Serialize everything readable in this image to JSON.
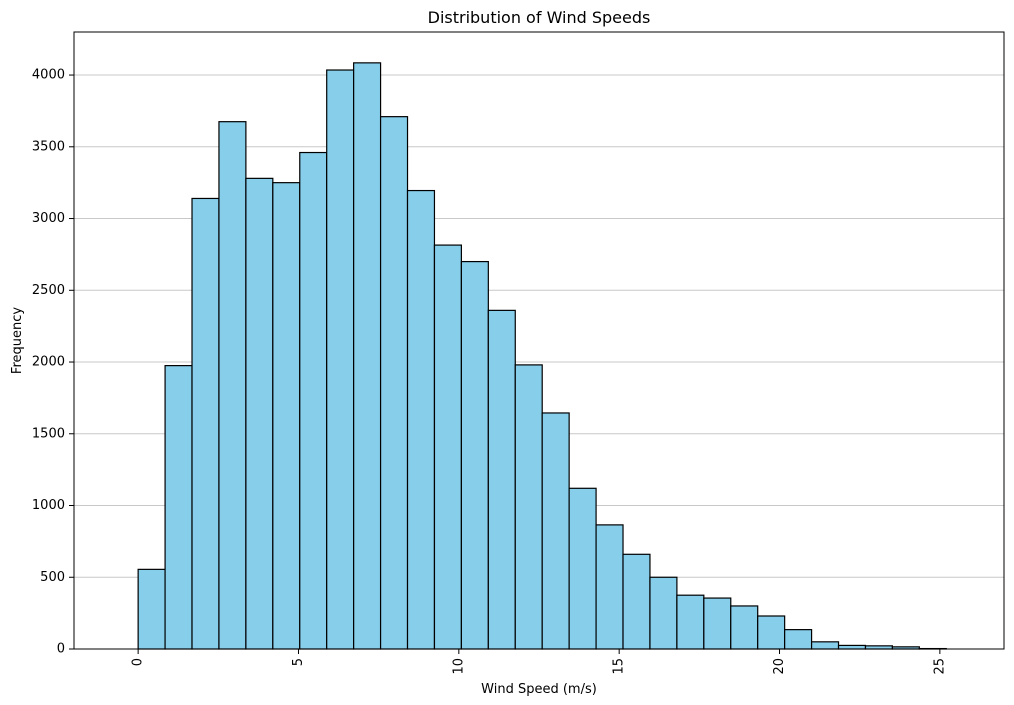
{
  "chart_data": {
    "type": "bar",
    "title": "Distribution of Wind Speeds",
    "xlabel": "Wind Speed (m/s)",
    "ylabel": "Frequency",
    "histogram": true,
    "bin_edges": [
      0.0,
      0.84,
      1.68,
      2.52,
      3.36,
      4.2,
      5.04,
      5.88,
      6.72,
      7.56,
      8.4,
      9.24,
      10.08,
      10.92,
      11.76,
      12.6,
      13.44,
      14.28,
      15.12,
      15.96,
      16.8,
      17.64,
      18.48,
      19.32,
      20.16,
      21.0,
      21.84,
      22.68,
      23.52,
      24.36,
      25.2
    ],
    "values": [
      555,
      1975,
      3140,
      3675,
      3280,
      3250,
      3460,
      4035,
      4085,
      3710,
      3195,
      2815,
      2700,
      2360,
      1980,
      1645,
      1120,
      865,
      660,
      500,
      375,
      355,
      300,
      230,
      135,
      50,
      25,
      22,
      15,
      3
    ],
    "xlim": [
      -2.0,
      27.0
    ],
    "ylim": [
      0,
      4300
    ],
    "xticks": [
      0,
      5,
      10,
      15,
      20,
      25
    ],
    "yticks": [
      0,
      500,
      1000,
      1500,
      2000,
      2500,
      3000,
      3500,
      4000
    ],
    "grid": "y",
    "bar_color": "#87ceeb",
    "edge_color": "#000000",
    "grid_color": "#c8c8c8"
  }
}
